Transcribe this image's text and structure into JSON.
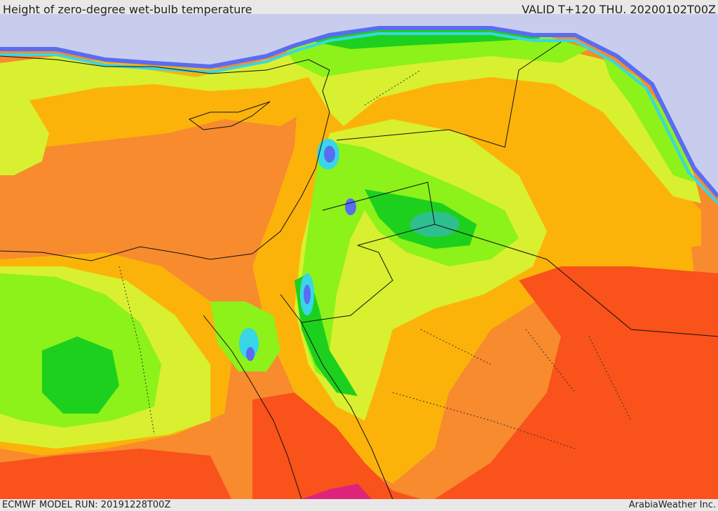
{
  "header": {
    "title": "Height of zero-degree wet-bulb temperature",
    "valid": "VALID T+120 THU. 20200102T00Z"
  },
  "footer": {
    "model_run": "ECMWF MODEL RUN: 20191228T00Z",
    "credit": "ArabiaWeather Inc."
  },
  "colors": {
    "sea_cold": "#c8cdee",
    "blue": "#5a6cf2",
    "cyan": "#38d6e6",
    "teal": "#2fbf8f",
    "green": "#1ed01e",
    "light_green": "#8cf21a",
    "yellow_green": "#d8f030",
    "amber": "#fbb30a",
    "orange": "#f78b2e",
    "red_orange": "#f9521b",
    "magenta": "#e0237a",
    "border": "#111111"
  }
}
